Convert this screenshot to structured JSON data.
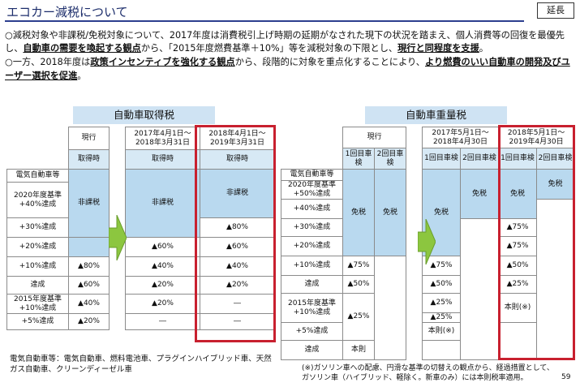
{
  "header": {
    "title": "エコカー減税について",
    "badge": "延長"
  },
  "intro": {
    "p1": {
      "a": "○減税対象や非課税/免税対象について、2017年度は消費税引上げ時期の延期がなされた現下の状況を踏まえ、個人消費等の回復を最優先し、",
      "b": "自動車の需要を喚起する観点",
      "c": "から、「2015年度燃費基準＋10%」等を減税対象の下限とし、",
      "d": "現行と同程度を支援",
      "e": "。"
    },
    "p2": {
      "a": "○一方、2018年度は",
      "b": "政策インセンティブを強化する観点",
      "c": "から、段階的に対象を重点化することにより、",
      "d": "より燃費のいい自動車の開発及びユーザー選択を促進",
      "e": "。"
    }
  },
  "left": {
    "section_title": "自動車取得税",
    "headers": [
      "現行",
      "2017年4月1日～2018年3月31日",
      "2018年4月1日～2019年3月31日"
    ],
    "sub": "取得時",
    "category": "電気自動車等",
    "rows": [
      {
        "label": "2020年度基準+40%達成",
        "v1": "非課税",
        "v2": "非課税",
        "v3": "非課税"
      },
      {
        "label": "+30%達成",
        "v1": "",
        "v2": "",
        "v3": "▲80%"
      },
      {
        "label": "+20%達成",
        "v1": "",
        "v2": "▲60%",
        "v3": "▲60%"
      },
      {
        "label": "+10%達成",
        "v1": "▲80%",
        "v2": "▲40%",
        "v3": "▲40%"
      },
      {
        "label": "達成",
        "v1": "▲60%",
        "v2": "▲20%",
        "v3": "▲20%"
      },
      {
        "label": "2015年度基準+10%達成",
        "v1": "▲40%",
        "v2": "▲20%",
        "v3": "―"
      },
      {
        "label": "+5%達成",
        "v1": "▲20%",
        "v2": "―",
        "v3": "―"
      }
    ],
    "footnote": "電気自動車等：電気自動車、燃料電池車、プラグインハイブリッド車、天然ガス自動車、クリーンディーゼル車"
  },
  "right": {
    "section_title": "自動車重量税",
    "headers": [
      "現行",
      "2017年5月1日～2018年4月30日",
      "2018年5月1日～2019年4月30日"
    ],
    "sub1": "1回目車検",
    "sub2": "2回目車検",
    "category": "電気自動車等",
    "labels": [
      "2020年度基準+50%達成",
      "+40%達成",
      "+30%達成",
      "+20%達成",
      "+10%達成",
      "達成",
      "2015年度基準+10%達成",
      "+5%達成",
      "達成"
    ],
    "genko1": {
      "menzei": "免税",
      "v10": "▲75%",
      "v20": "▲50%",
      "v30": "▲25%",
      "honsoku": "本則"
    },
    "genko2": {
      "menzei": "免税"
    },
    "y17_1": {
      "menzei": "免税",
      "r20": "▲75%",
      "r10": "▲50%",
      "r0": "▲25%",
      "r15": "▲25%",
      "r5": "本則(※)"
    },
    "y17_2": {
      "menzei": "免税"
    },
    "y18_1": {
      "menzei": "免税",
      "r30": "▲75%",
      "r20": "▲75%",
      "r10": "▲50%",
      "r0": "▲25%",
      "r15": "本則(※)"
    },
    "y18_2": {
      "menzei": "免税"
    },
    "footnote": "(※)ガソリン車への配慮、円滑な基準の切替えの観点から、経過措置として、ガソリン車（ハイブリッド、軽除く。新車のみ）には本則税率適用。"
  },
  "page": "59",
  "colors": {
    "accent": "#c8202f",
    "section_bg": "#cfe3f3",
    "cell_blue": "#b9d9ef",
    "arrow": "#8cc63f"
  }
}
